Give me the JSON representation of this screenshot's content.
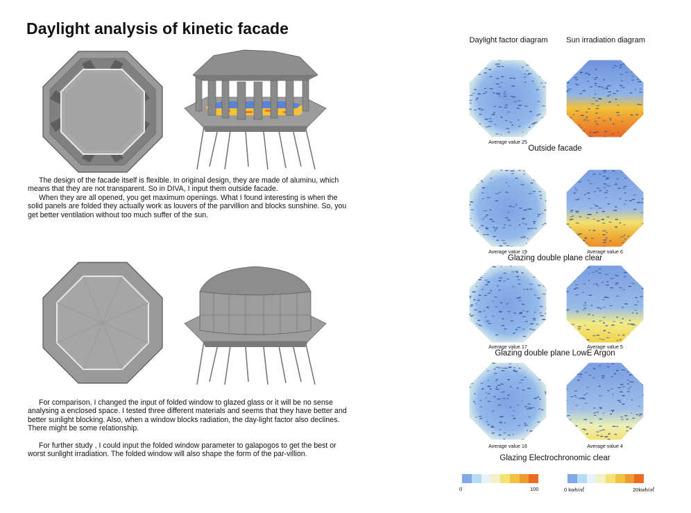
{
  "page": {
    "title": "Daylight analysis of kinetic facade"
  },
  "text": {
    "para1": [
      "The design of the facade itself is flexible. In original design, they are made of aluminu, which means that they are not transparent. So in DIVA, I input them outside facade.",
      "When they are all opened, you get maximum openings. What I found interesting is when the solid panels are folded they actually work as louvers of the parvillion and blocks sunshine. So, you get better ventilation without too much suffer of the sun."
    ],
    "para2": [
      "For comparison, I changed the input of folded window to glazed glass or it will be no sense analysing a enclosed space. I tested three different materials and seems that they have better and better sunlight blocking. Also, when a window blocks radiation, the day-light factor also declines. There might be some relationship.",
      "For further study , I could input the folded window parameter to galapogos to get the best or worst sunlight irradiation. The folded window will also shape the form of the par-villion."
    ]
  },
  "analysis": {
    "col_headers": {
      "daylight": "Daylight factor diagram",
      "sun": "Sun irradiation diagram"
    },
    "rows": [
      {
        "caption": "Outside facade",
        "daylight_avg_label": "Average value 25",
        "sun_avg_label": "",
        "daylight_avg": 25,
        "sun_avg": null
      },
      {
        "caption": "Glazing double plane clear",
        "daylight_avg_label": "Average value 19",
        "sun_avg_label": "Average value 6",
        "daylight_avg": 19,
        "sun_avg": 6
      },
      {
        "caption": "Glazing double plane LowE Argon",
        "daylight_avg_label": "Average value 17",
        "sun_avg_label": "Average value 5",
        "daylight_avg": 17,
        "sun_avg": 5
      },
      {
        "caption": "Glazing Electrochronomic clear",
        "daylight_avg_label": "Average value 16",
        "sun_avg_label": "Average value 4",
        "daylight_avg": 16,
        "sun_avg": 4
      }
    ],
    "legend_daylight": {
      "min": "0",
      "max": "100"
    },
    "legend_sun": {
      "min": "0 kwh/㎡",
      "max": "20kwh/㎡"
    },
    "scale_colors": [
      "#7fa9e8",
      "#b9daf4",
      "#e6f4f8",
      "#f2f2c8",
      "#f5e070",
      "#f3c240",
      "#f09a30",
      "#ec6a22"
    ]
  }
}
